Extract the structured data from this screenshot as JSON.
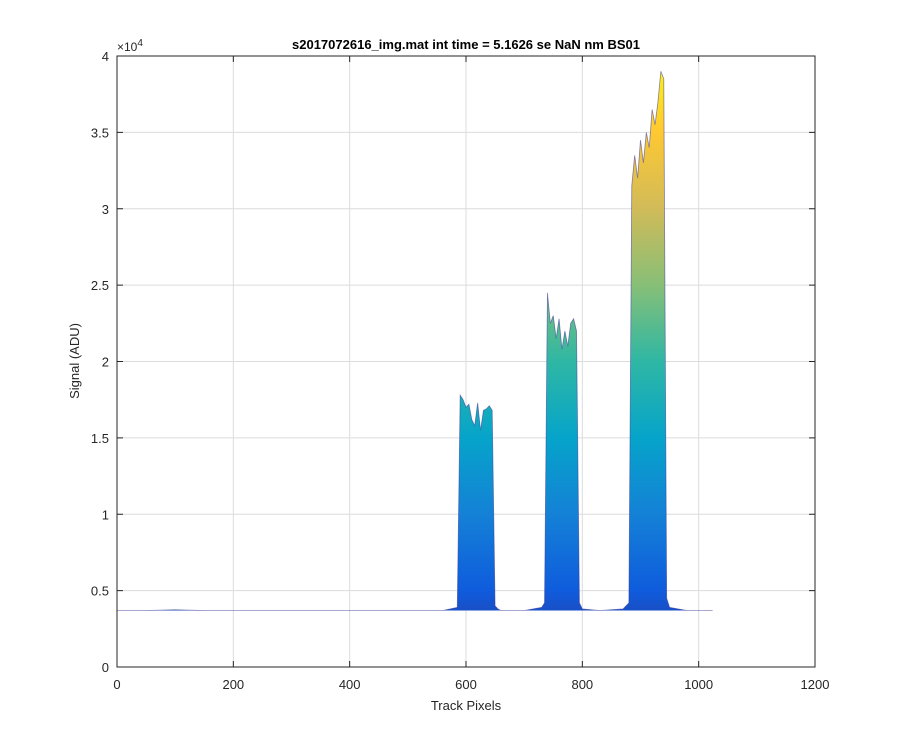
{
  "chart_data": {
    "type": "area",
    "title": "s2017072616_img.mat int time = 5.1626 se  NaN nm BS01",
    "xlabel": "Track Pixels",
    "ylabel": "Signal (ADU)",
    "xlim": [
      0,
      1200
    ],
    "ylim": [
      0,
      40000
    ],
    "x_ticks": [
      0,
      200,
      400,
      600,
      800,
      1000,
      1200
    ],
    "y_ticks": [
      0,
      5000,
      10000,
      15000,
      20000,
      25000,
      30000,
      35000,
      40000
    ],
    "x_tick_labels": [
      "0",
      "200",
      "400",
      "600",
      "800",
      "1000",
      "1200"
    ],
    "y_tick_labels": [
      "0",
      "0.5",
      "1",
      "1.5",
      "2",
      "2.5",
      "3",
      "3.5",
      "4"
    ],
    "y_exponent_label": "×10",
    "y_exponent_power": "4",
    "grid": true,
    "colormap": [
      "#352a87",
      "#0f5cdd",
      "#1481d6",
      "#06a4ca",
      "#2eb7a4",
      "#87bf77",
      "#d1bb59",
      "#fec832",
      "#f9fb0e"
    ],
    "baseline": 3700,
    "series": [
      {
        "x": [
          0,
          50,
          100,
          150,
          200,
          300,
          400,
          500,
          560,
          585,
          590,
          595,
          600,
          605,
          610,
          615,
          620,
          625,
          630,
          635,
          640,
          645,
          650,
          655,
          660,
          700,
          730,
          735,
          740,
          745,
          750,
          755,
          760,
          765,
          770,
          775,
          780,
          785,
          790,
          795,
          800,
          830,
          870,
          880,
          885,
          890,
          895,
          900,
          905,
          910,
          915,
          920,
          925,
          930,
          935,
          940,
          945,
          950,
          980,
          1024
        ],
        "y": [
          3700,
          3700,
          3750,
          3700,
          3700,
          3700,
          3700,
          3700,
          3700,
          3900,
          17800,
          17500,
          17000,
          17200,
          16200,
          15800,
          17300,
          15500,
          16800,
          16900,
          17100,
          16800,
          4000,
          3800,
          3700,
          3700,
          3900,
          4200,
          24500,
          22500,
          23000,
          21500,
          22800,
          20800,
          22000,
          21000,
          22500,
          22800,
          22000,
          4200,
          3800,
          3700,
          3800,
          4200,
          31500,
          33500,
          32000,
          34500,
          33000,
          35000,
          34000,
          36500,
          35500,
          37000,
          39000,
          38500,
          4500,
          3900,
          3700,
          3700
        ]
      }
    ]
  }
}
